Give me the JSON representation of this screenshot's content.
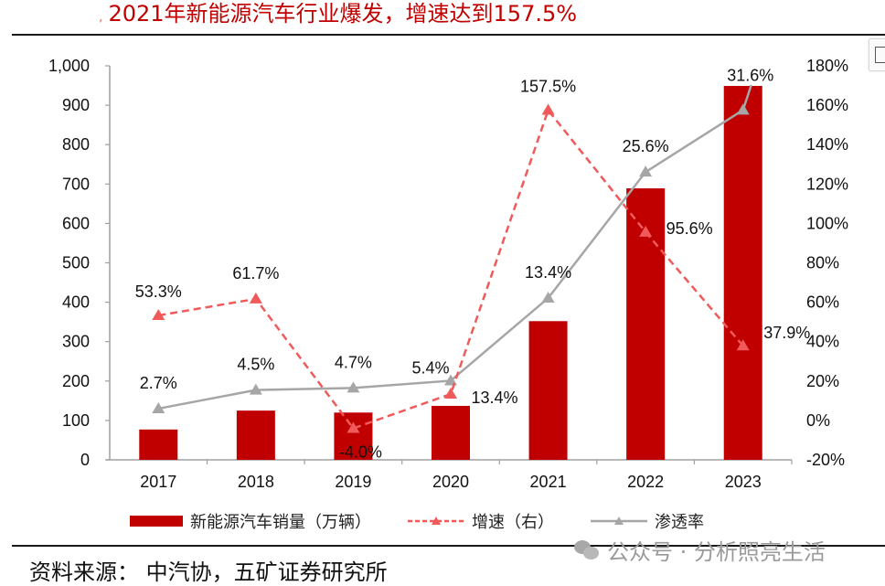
{
  "title": {
    "fragment": ",",
    "text": "2021年新能源汽车行业爆发，增速达到157.5%"
  },
  "colors": {
    "bar": "#c00000",
    "growth": "#f05a5a",
    "penetration": "#a6a6a6",
    "axis": "#a0a0a0",
    "title": "#c00000"
  },
  "chart_data": {
    "type": "bar",
    "title": "2021年新能源汽车行业爆发，增速达到157.5%",
    "categories": [
      "2017",
      "2018",
      "2019",
      "2020",
      "2021",
      "2022",
      "2023"
    ],
    "series": [
      {
        "name": "新能源汽车销量（万辆）",
        "type": "bar",
        "axis": "left",
        "values": [
          77,
          125,
          120,
          137,
          352,
          689,
          949
        ]
      },
      {
        "name": "增速（右）",
        "type": "line",
        "style": "dashed",
        "marker": "triangle",
        "axis": "right",
        "values": [
          53.3,
          61.7,
          -4.0,
          13.4,
          157.5,
          95.6,
          37.9
        ],
        "labels": [
          "53.3%",
          "61.7%",
          "-4.0%",
          "13.4%",
          "157.5%",
          "95.6%",
          "37.9%"
        ]
      },
      {
        "name": "渗透率",
        "type": "line",
        "style": "solid",
        "marker": "triangle",
        "axis": "hidden",
        "values": [
          2.7,
          4.5,
          4.7,
          5.4,
          13.4,
          25.6,
          31.6
        ],
        "labels": [
          "2.7%",
          "4.5%",
          "4.7%",
          "5.4%",
          "13.4%",
          "25.6%",
          "31.6%"
        ]
      }
    ],
    "left_axis": {
      "ylim": [
        0,
        1000
      ],
      "ticks": [
        "0",
        "100",
        "200",
        "300",
        "400",
        "500",
        "600",
        "700",
        "800",
        "900",
        "1,000"
      ]
    },
    "right_axis": {
      "ylim": [
        -20,
        180
      ],
      "ticks": [
        "-20%",
        "0%",
        "20%",
        "40%",
        "60%",
        "80%",
        "100%",
        "120%",
        "140%",
        "160%",
        "180%"
      ]
    },
    "hidden_axis": {
      "ylim": [
        -2.26,
        35.88
      ]
    },
    "grid": false,
    "legend_position": "bottom"
  },
  "legend": {
    "bar": "新能源汽车销量（万辆）",
    "growth": "增速（右）",
    "penetration": "渗透率"
  },
  "source": "资料来源：  中汽协，五矿证券研究所",
  "watermark": "公众号 · 分析照亮生活",
  "corner_button": {
    "icon": "scan-icon"
  }
}
